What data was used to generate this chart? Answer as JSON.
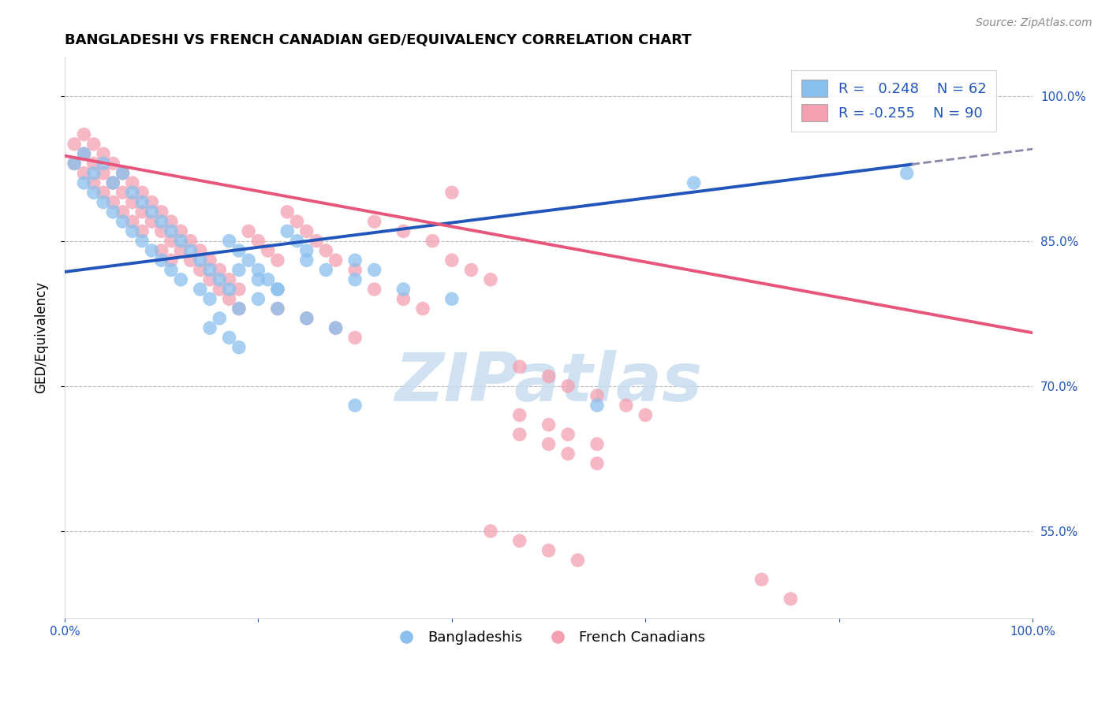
{
  "title": "BANGLADESHI VS FRENCH CANADIAN GED/EQUIVALENCY CORRELATION CHART",
  "source_text": "Source: ZipAtlas.com",
  "ylabel": "GED/Equivalency",
  "legend_r_blue": "0.248",
  "legend_n_blue": "62",
  "legend_r_pink": "-0.255",
  "legend_n_pink": "90",
  "blue_color": "#89BFED",
  "pink_color": "#F4A0B0",
  "line_blue_color": "#2255BB",
  "line_pink_dashed_color": "#8888AA",
  "line_pink_color": "#E8557A",
  "watermark_color": "#C8DCF0",
  "blue_line_x0": 0.0,
  "blue_line_y0": 0.818,
  "blue_line_x1": 1.0,
  "blue_line_y1": 0.945,
  "blue_line_solid_end": 0.875,
  "pink_line_x0": 0.0,
  "pink_line_y0": 0.938,
  "pink_line_x1": 1.0,
  "pink_line_y1": 0.755,
  "xlim": [
    0.0,
    1.0
  ],
  "ylim": [
    0.46,
    1.04
  ],
  "yticks": [
    0.55,
    0.7,
    0.85,
    1.0
  ],
  "ytick_labels": [
    "55.0%",
    "70.0%",
    "85.0%",
    "100.0%"
  ],
  "blue_x": [
    0.01,
    0.02,
    0.02,
    0.03,
    0.03,
    0.04,
    0.04,
    0.05,
    0.05,
    0.06,
    0.06,
    0.07,
    0.07,
    0.08,
    0.08,
    0.09,
    0.09,
    0.1,
    0.1,
    0.11,
    0.11,
    0.12,
    0.12,
    0.13,
    0.14,
    0.14,
    0.15,
    0.15,
    0.16,
    0.17,
    0.17,
    0.18,
    0.18,
    0.19,
    0.2,
    0.21,
    0.22,
    0.23,
    0.24,
    0.25,
    0.15,
    0.16,
    0.17,
    0.18,
    0.2,
    0.22,
    0.25,
    0.28,
    0.3,
    0.32,
    0.18,
    0.2,
    0.22,
    0.25,
    0.27,
    0.3,
    0.35,
    0.4,
    0.65,
    0.87,
    0.55,
    0.3
  ],
  "blue_y": [
    0.93,
    0.91,
    0.94,
    0.92,
    0.9,
    0.93,
    0.89,
    0.91,
    0.88,
    0.92,
    0.87,
    0.9,
    0.86,
    0.89,
    0.85,
    0.88,
    0.84,
    0.87,
    0.83,
    0.86,
    0.82,
    0.85,
    0.81,
    0.84,
    0.83,
    0.8,
    0.82,
    0.79,
    0.81,
    0.8,
    0.85,
    0.84,
    0.78,
    0.83,
    0.82,
    0.81,
    0.8,
    0.86,
    0.85,
    0.84,
    0.76,
    0.77,
    0.75,
    0.74,
    0.79,
    0.78,
    0.77,
    0.76,
    0.83,
    0.82,
    0.82,
    0.81,
    0.8,
    0.83,
    0.82,
    0.81,
    0.8,
    0.79,
    0.91,
    0.92,
    0.68,
    0.68
  ],
  "pink_x": [
    0.01,
    0.01,
    0.02,
    0.02,
    0.02,
    0.03,
    0.03,
    0.03,
    0.04,
    0.04,
    0.04,
    0.05,
    0.05,
    0.05,
    0.06,
    0.06,
    0.06,
    0.07,
    0.07,
    0.07,
    0.08,
    0.08,
    0.08,
    0.09,
    0.09,
    0.1,
    0.1,
    0.1,
    0.11,
    0.11,
    0.11,
    0.12,
    0.12,
    0.13,
    0.13,
    0.14,
    0.14,
    0.15,
    0.15,
    0.16,
    0.16,
    0.17,
    0.17,
    0.18,
    0.18,
    0.19,
    0.2,
    0.21,
    0.22,
    0.23,
    0.24,
    0.25,
    0.26,
    0.27,
    0.28,
    0.3,
    0.32,
    0.35,
    0.38,
    0.4,
    0.22,
    0.25,
    0.28,
    0.3,
    0.32,
    0.35,
    0.37,
    0.4,
    0.42,
    0.44,
    0.47,
    0.5,
    0.52,
    0.55,
    0.58,
    0.6,
    0.47,
    0.5,
    0.52,
    0.55,
    0.47,
    0.5,
    0.52,
    0.55,
    0.44,
    0.47,
    0.5,
    0.53,
    0.72,
    0.75
  ],
  "pink_y": [
    0.95,
    0.93,
    0.96,
    0.94,
    0.92,
    0.95,
    0.93,
    0.91,
    0.94,
    0.92,
    0.9,
    0.93,
    0.91,
    0.89,
    0.92,
    0.9,
    0.88,
    0.91,
    0.89,
    0.87,
    0.9,
    0.88,
    0.86,
    0.89,
    0.87,
    0.88,
    0.86,
    0.84,
    0.87,
    0.85,
    0.83,
    0.86,
    0.84,
    0.85,
    0.83,
    0.84,
    0.82,
    0.83,
    0.81,
    0.82,
    0.8,
    0.81,
    0.79,
    0.8,
    0.78,
    0.86,
    0.85,
    0.84,
    0.83,
    0.88,
    0.87,
    0.86,
    0.85,
    0.84,
    0.83,
    0.82,
    0.87,
    0.86,
    0.85,
    0.9,
    0.78,
    0.77,
    0.76,
    0.75,
    0.8,
    0.79,
    0.78,
    0.83,
    0.82,
    0.81,
    0.72,
    0.71,
    0.7,
    0.69,
    0.68,
    0.67,
    0.65,
    0.64,
    0.63,
    0.62,
    0.67,
    0.66,
    0.65,
    0.64,
    0.55,
    0.54,
    0.53,
    0.52,
    0.5,
    0.48
  ]
}
